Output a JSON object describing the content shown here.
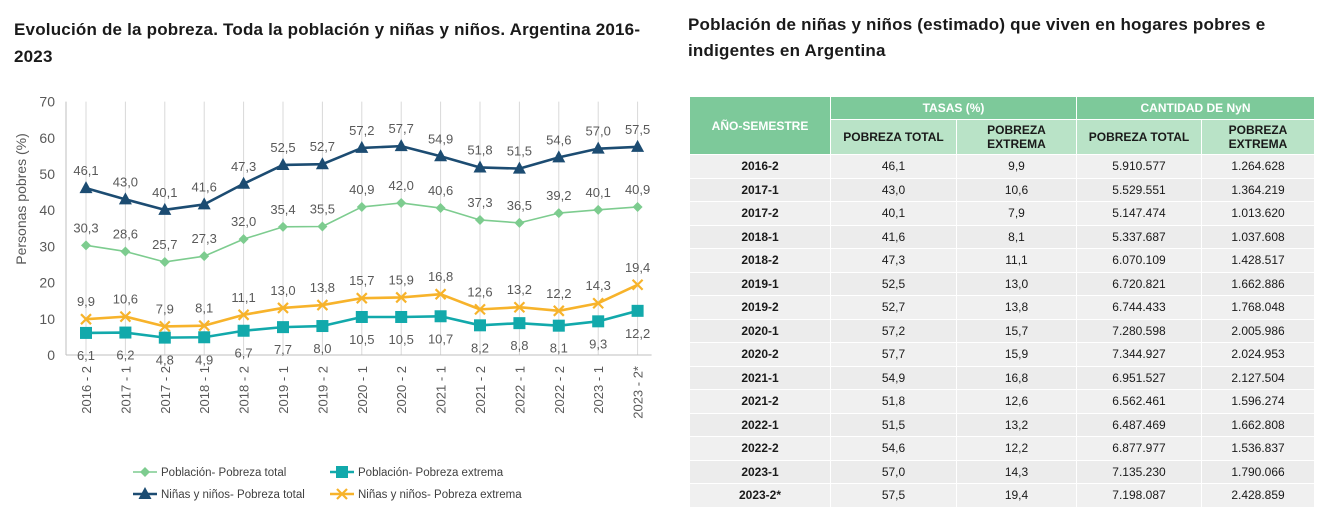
{
  "chart_title": "Evolución de la pobreza. Toda la población y niñas y niños. Argentina 2016-2023",
  "chart_data": {
    "type": "line",
    "title": "Evolución de la pobreza. Toda la población y niñas y niños. Argentina 2016-2023",
    "xlabel": "",
    "ylabel": "Personas pobres (%)",
    "ylim": [
      0,
      70
    ],
    "yticks": [
      "0",
      "10",
      "20",
      "30",
      "40",
      "50",
      "60",
      "70"
    ],
    "grid": "vertical",
    "categories": [
      "2016 - 2",
      "2017 - 1",
      "2017 - 2",
      "2018 - 1",
      "2018 - 2",
      "2019 - 1",
      "2019 - 2",
      "2020 - 1",
      "2020 - 2",
      "2021 - 1",
      "2021 - 2",
      "2022 - 1",
      "2022 - 2",
      "2023 - 1",
      "2023 - 2*"
    ],
    "series": [
      {
        "name": "Población- Pobreza total",
        "color": "#7dcc8f",
        "marker": "diamond",
        "values": [
          30.3,
          28.6,
          25.7,
          27.3,
          32.0,
          35.4,
          35.5,
          40.9,
          42.0,
          40.6,
          37.3,
          36.5,
          39.2,
          40.1,
          40.9
        ],
        "labels": [
          "30,3",
          "28,6",
          "25,7",
          "27,3",
          "32,0",
          "35,4",
          "35,5",
          "40,9",
          "42,0",
          "40,6",
          "37,3",
          "36,5",
          "39,2",
          "40,1",
          "40,9"
        ],
        "label_pos": "above"
      },
      {
        "name": "Población- Pobreza extrema",
        "color": "#12a9ab",
        "marker": "square",
        "values": [
          6.1,
          6.2,
          4.8,
          4.9,
          6.7,
          7.7,
          8.0,
          10.5,
          10.5,
          10.7,
          8.2,
          8.8,
          8.1,
          9.3,
          12.2
        ],
        "labels": [
          "6,1",
          "6,2",
          "4,8",
          "4,9",
          "6,7",
          "7,7",
          "8,0",
          "10,5",
          "10,5",
          "10,7",
          "8,2",
          "8,8",
          "8,1",
          "9,3",
          "12,2"
        ],
        "label_pos": "below"
      },
      {
        "name": "Niñas y niños- Pobreza total",
        "color": "#1c4c72",
        "marker": "triangle",
        "values": [
          46.1,
          43.0,
          40.1,
          41.6,
          47.3,
          52.5,
          52.7,
          57.2,
          57.7,
          54.9,
          51.8,
          51.5,
          54.6,
          57.0,
          57.5
        ],
        "labels": [
          "46,1",
          "43,0",
          "40,1",
          "41,6",
          "47,3",
          "52,5",
          "52,7",
          "57,2",
          "57,7",
          "54,9",
          "51,8",
          "51,5",
          "54,6",
          "57,0",
          "57,5"
        ],
        "label_pos": "above"
      },
      {
        "name": "Niñas y niños- Pobreza extrema",
        "color": "#f7b32b",
        "marker": "x",
        "values": [
          9.9,
          10.6,
          7.9,
          8.1,
          11.1,
          13.0,
          13.8,
          15.7,
          15.9,
          16.8,
          12.6,
          13.2,
          12.2,
          14.3,
          19.4
        ],
        "labels": [
          "9,9",
          "10,6",
          "7,9",
          "8,1",
          "11,1",
          "13,0",
          "13,8",
          "15,7",
          "15,9",
          "16,8",
          "12,6",
          "13,2",
          "12,2",
          "14,3",
          "19,4"
        ],
        "label_pos": "above"
      }
    ],
    "legend": {
      "placement": "bottom",
      "items": [
        "Población- Pobreza total",
        "Población- Pobreza extrema",
        "Niñas y niños- Pobreza total",
        "Niñas y niños- Pobreza extrema"
      ]
    }
  },
  "table": {
    "title": "Población de niñas y niños (estimado) que viven en hogares pobres e indigentes en Argentina",
    "header_row1": [
      "AÑO-SEMESTRE",
      "TASAS (%)",
      "CANTIDAD DE NyN"
    ],
    "header_row2": [
      "POBREZA TOTAL",
      "POBREZA EXTREMA",
      "POBREZA TOTAL",
      "POBREZA EXTREMA"
    ],
    "rows": [
      [
        "2016-2",
        "46,1",
        "9,9",
        "5.910.577",
        "1.264.628"
      ],
      [
        "2017-1",
        "43,0",
        "10,6",
        "5.529.551",
        "1.364.219"
      ],
      [
        "2017-2",
        "40,1",
        "7,9",
        "5.147.474",
        "1.013.620"
      ],
      [
        "2018-1",
        "41,6",
        "8,1",
        "5.337.687",
        "1.037.608"
      ],
      [
        "2018-2",
        "47,3",
        "11,1",
        "6.070.109",
        "1.428.517"
      ],
      [
        "2019-1",
        "52,5",
        "13,0",
        "6.720.821",
        "1.662.886"
      ],
      [
        "2019-2",
        "52,7",
        "13,8",
        "6.744.433",
        "1.768.048"
      ],
      [
        "2020-1",
        "57,2",
        "15,7",
        "7.280.598",
        "2.005.986"
      ],
      [
        "2020-2",
        "57,7",
        "15,9",
        "7.344.927",
        "2.024.953"
      ],
      [
        "2021-1",
        "54,9",
        "16,8",
        "6.951.527",
        "2.127.504"
      ],
      [
        "2021-2",
        "51,8",
        "12,6",
        "6.562.461",
        "1.596.274"
      ],
      [
        "2022-1",
        "51,5",
        "13,2",
        "6.487.469",
        "1.662.808"
      ],
      [
        "2022-2",
        "54,6",
        "12,2",
        "6.877.977",
        "1.536.837"
      ],
      [
        "2023-1",
        "57,0",
        "14,3",
        "7.135.230",
        "1.790.066"
      ],
      [
        "2023-2*",
        "57,5",
        "19,4",
        "7.198.087",
        "2.428.859"
      ]
    ]
  }
}
